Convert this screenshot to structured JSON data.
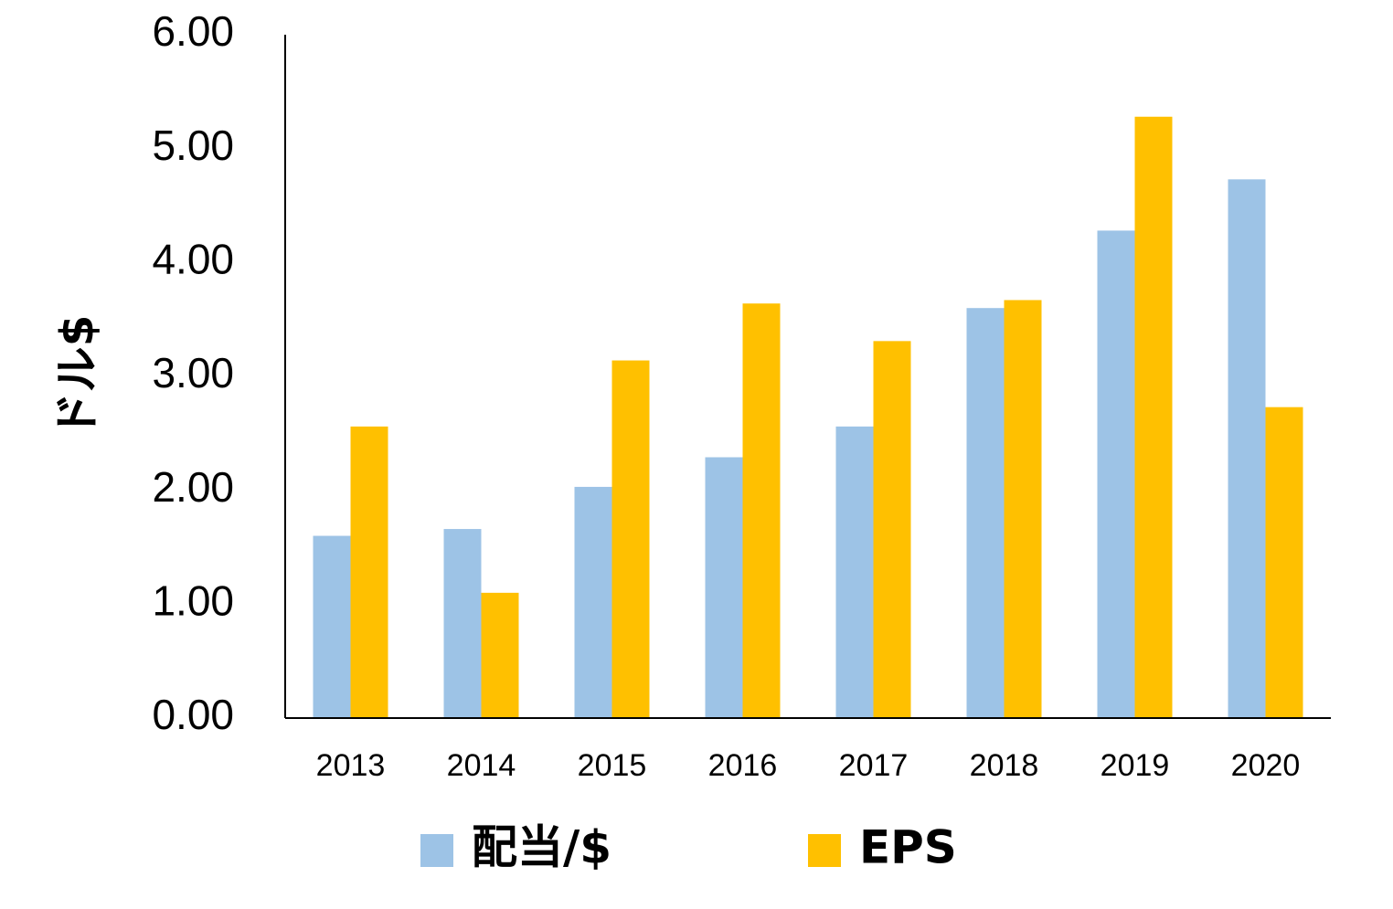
{
  "chart_data": {
    "type": "bar",
    "title": "",
    "xlabel": "",
    "ylabel": "ドル$",
    "ylim": [
      0,
      6
    ],
    "yticks": [
      "0.00",
      "1.00",
      "2.00",
      "3.00",
      "4.00",
      "5.00",
      "6.00"
    ],
    "categories": [
      "2013",
      "2014",
      "2015",
      "2016",
      "2017",
      "2018",
      "2019",
      "2020"
    ],
    "series": [
      {
        "name": "配当/$",
        "color": "#9DC3E6",
        "values": [
          1.6,
          1.66,
          2.03,
          2.29,
          2.56,
          3.6,
          4.28,
          4.73
        ]
      },
      {
        "name": "EPS",
        "color": "#FFC000",
        "values": [
          2.56,
          1.1,
          3.14,
          3.64,
          3.31,
          3.67,
          5.28,
          2.73
        ]
      }
    ],
    "grid": false,
    "legend_position": "bottom"
  }
}
